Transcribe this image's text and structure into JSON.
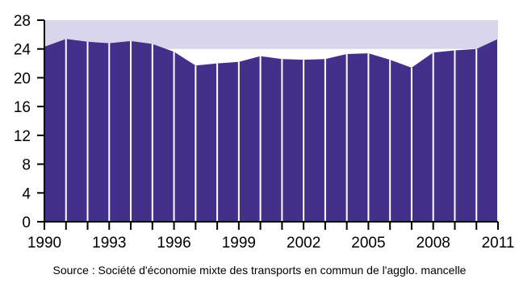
{
  "chart_data": {
    "type": "area",
    "x": [
      1990,
      1991,
      1992,
      1993,
      1994,
      1995,
      1996,
      1997,
      1998,
      1999,
      2000,
      2001,
      2002,
      2003,
      2004,
      2005,
      2006,
      2007,
      2008,
      2009,
      2010,
      2011
    ],
    "series": [
      {
        "values": [
          24.3,
          25.4,
          25.0,
          24.8,
          25.1,
          24.7,
          23.6,
          21.7,
          22.0,
          22.2,
          23.0,
          22.6,
          22.5,
          22.6,
          23.3,
          23.4,
          22.5,
          21.4,
          23.5,
          23.8,
          24.0,
          25.4
        ]
      }
    ],
    "background_band": [
      24,
      28
    ],
    "xticks": [
      "1990",
      "1993",
      "1996",
      "1999",
      "2002",
      "2005",
      "2008",
      "2011"
    ],
    "yticks": [
      "0",
      "4",
      "8",
      "12",
      "16",
      "20",
      "24",
      "28"
    ],
    "xlim": [
      1990,
      2011
    ],
    "ylim": [
      0,
      28
    ],
    "title": "",
    "xlabel": "",
    "ylabel": "",
    "colors": {
      "series": "#43308b",
      "band": "#d9d6ec",
      "grid": "#ffffff",
      "axis": "#000000"
    }
  },
  "source": "Source : Société d'économie mixte des transports en commun de l'agglo. mancelle"
}
